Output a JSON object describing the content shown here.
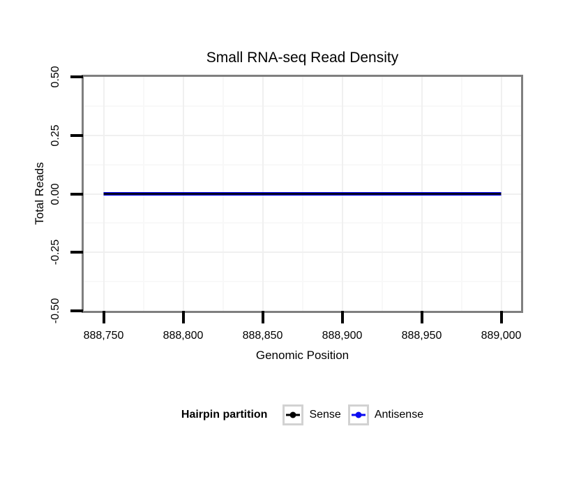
{
  "title": "Small RNA-seq Read Density",
  "chart_data": {
    "type": "line",
    "title": "Small RNA-seq Read Density",
    "xlabel": "Genomic Position",
    "ylabel": "Total Reads",
    "xlim": [
      888737.5,
      889012.5
    ],
    "ylim": [
      -0.5,
      0.5
    ],
    "grid": true,
    "legend_position": "bottom",
    "x_ticks": [
      {
        "value": 888750,
        "label": "888,750"
      },
      {
        "value": 888800,
        "label": "888,800"
      },
      {
        "value": 888850,
        "label": "888,850"
      },
      {
        "value": 888900,
        "label": "888,900"
      },
      {
        "value": 888950,
        "label": "888,950"
      },
      {
        "value": 889000,
        "label": "889,000"
      }
    ],
    "y_ticks": [
      {
        "value": 0.5,
        "label": "0.50"
      },
      {
        "value": 0.25,
        "label": "0.25"
      },
      {
        "value": 0,
        "label": "0.00"
      },
      {
        "value": -0.25,
        "label": "-0.25"
      },
      {
        "value": -0.5,
        "label": "-0.50"
      }
    ],
    "x_minor_breaks": [
      888775,
      888825,
      888875,
      888925,
      888975
    ],
    "y_minor_breaks": [
      0.375,
      0.125,
      -0.125,
      -0.375
    ],
    "series": [
      {
        "name": "Sense",
        "color": "#000000",
        "linewidth": 2.5,
        "x": [
          888750,
          889000
        ],
        "y": [
          0,
          0
        ]
      },
      {
        "name": "Antisense",
        "color": "#0b0bf0",
        "linewidth": 5,
        "x": [
          888750,
          889000
        ],
        "y": [
          0,
          0
        ]
      }
    ]
  },
  "legend": {
    "title": "Hairpin partition",
    "items": [
      {
        "label": "Sense",
        "color": "#000000"
      },
      {
        "label": "Antisense",
        "color": "#0b0bf0"
      }
    ]
  }
}
